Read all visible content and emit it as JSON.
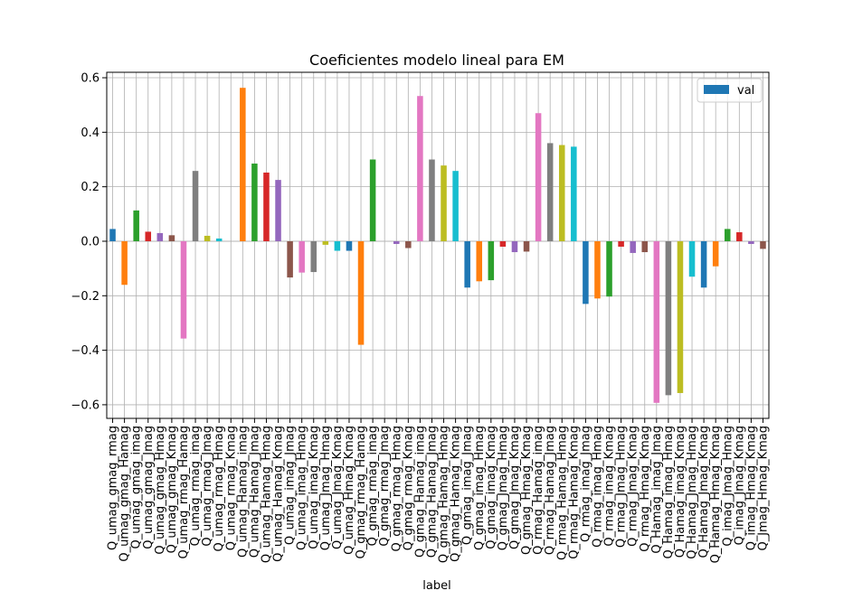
{
  "chart_data": {
    "type": "bar",
    "title": "Coeficientes modelo lineal para EM",
    "xlabel": "label",
    "ylabel": "",
    "ylim": [
      -0.65,
      0.62
    ],
    "yticks": [
      -0.6,
      -0.4,
      -0.2,
      0.0,
      0.2,
      0.4,
      0.6
    ],
    "ytick_labels": [
      "−0.6",
      "−0.4",
      "−0.2",
      "0.0",
      "0.2",
      "0.4",
      "0.6"
    ],
    "grid": true,
    "legend_position": "top-right",
    "series": [
      {
        "name": "val",
        "legend_color": "#1f77b4",
        "palette": [
          "#1f77b4",
          "#ff7f0e",
          "#2ca02c",
          "#d62728",
          "#9467bd",
          "#8c564b",
          "#e377c2",
          "#7f7f7f",
          "#bcbd22",
          "#17becf"
        ],
        "values": [
          0.045,
          -0.16,
          0.113,
          0.035,
          0.03,
          0.022,
          -0.357,
          0.258,
          0.02,
          0.01,
          0.0,
          0.563,
          0.285,
          0.252,
          0.225,
          -0.133,
          -0.115,
          -0.113,
          -0.013,
          -0.035,
          -0.035,
          -0.38,
          0.3,
          0.0,
          -0.01,
          -0.025,
          0.533,
          0.3,
          0.278,
          0.258,
          -0.17,
          -0.147,
          -0.143,
          -0.02,
          -0.04,
          -0.038,
          0.47,
          0.36,
          0.353,
          0.347,
          -0.23,
          -0.21,
          -0.203,
          -0.02,
          -0.043,
          -0.04,
          -0.593,
          -0.565,
          -0.557,
          -0.13,
          -0.17,
          -0.092,
          0.045,
          0.033,
          -0.01,
          -0.028
        ]
      }
    ],
    "categories": [
      "Q_umag_gmag_rmag",
      "Q_umag_gmag_Hamag",
      "Q_umag_gmag_imag",
      "Q_umag_gmag_Jmag",
      "Q_umag_gmag_Hmag",
      "Q_umag_gmag_Kmag",
      "Q_umag_rmag_Hamag",
      "Q_umag_rmag_imag",
      "Q_umag_rmag_Jmag",
      "Q_umag_rmag_Hmag",
      "Q_umag_rmag_Kmag",
      "Q_umag_Hamag_imag",
      "Q_umag_Hamag_Jmag",
      "Q_umag_Hamag_Hmag",
      "Q_umag_Hamag_Kmag",
      "Q_umag_imag_Jmag",
      "Q_umag_imag_Hmag",
      "Q_umag_imag_Kmag",
      "Q_umag_Jmag_Hmag",
      "Q_umag_Jmag_Kmag",
      "Q_umag_Hmag_Kmag",
      "Q_gmag_rmag_Hamag",
      "Q_gmag_rmag_imag",
      "Q_gmag_rmag_Jmag",
      "Q_gmag_rmag_Hmag",
      "Q_gmag_rmag_Kmag",
      "Q_gmag_Hamag_imag",
      "Q_gmag_Hamag_Jmag",
      "Q_gmag_Hamag_Hmag",
      "Q_gmag_Hamag_Kmag",
      "Q_gmag_imag_Jmag",
      "Q_gmag_imag_Hmag",
      "Q_gmag_imag_Kmag",
      "Q_gmag_Jmag_Hmag",
      "Q_gmag_Jmag_Kmag",
      "Q_gmag_Hmag_Kmag",
      "Q_rmag_Hamag_imag",
      "Q_rmag_Hamag_Jmag",
      "Q_rmag_Hamag_Hmag",
      "Q_rmag_Hamag_Kmag",
      "Q_rmag_imag_Jmag",
      "Q_rmag_imag_Hmag",
      "Q_rmag_imag_Kmag",
      "Q_rmag_Jmag_Hmag",
      "Q_rmag_Jmag_Kmag",
      "Q_rmag_Hmag_Kmag",
      "Q_Hamag_imag_Jmag",
      "Q_Hamag_imag_Hmag",
      "Q_Hamag_imag_Kmag",
      "Q_Hamag_Jmag_Hmag",
      "Q_Hamag_Jmag_Kmag",
      "Q_Hamag_Hmag_Kmag",
      "Q_imag_Jmag_Hmag",
      "Q_imag_Jmag_Kmag",
      "Q_imag_Hmag_Kmag",
      "Q_Jmag_Hmag_Kmag"
    ]
  }
}
